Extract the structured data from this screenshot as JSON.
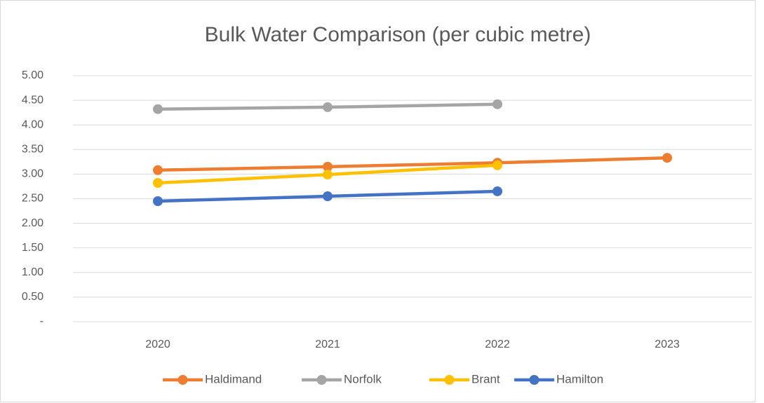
{
  "chart_data": {
    "type": "line",
    "title": "Bulk Water Comparison (per cubic metre)",
    "categories": [
      "2020",
      "2021",
      "2022",
      "2023"
    ],
    "series": [
      {
        "name": "Haldimand",
        "color": "#ED7D31",
        "values": [
          3.08,
          3.15,
          3.23,
          3.33
        ]
      },
      {
        "name": "Norfolk",
        "color": "#A5A5A5",
        "values": [
          4.32,
          4.36,
          4.42,
          null
        ]
      },
      {
        "name": "Brant",
        "color": "#FFC000",
        "values": [
          2.82,
          2.99,
          3.18,
          null
        ]
      },
      {
        "name": "Hamilton",
        "color": "#4472C4",
        "values": [
          2.45,
          2.55,
          2.65,
          null
        ]
      }
    ],
    "ylim": [
      0,
      5
    ],
    "yticks": [
      {
        "value": 0,
        "label": "-"
      },
      {
        "value": 0.5,
        "label": "0.50"
      },
      {
        "value": 1,
        "label": "1.00"
      },
      {
        "value": 1.5,
        "label": "1.50"
      },
      {
        "value": 2,
        "label": "2.00"
      },
      {
        "value": 2.5,
        "label": "2.50"
      },
      {
        "value": 3,
        "label": "3.00"
      },
      {
        "value": 3.5,
        "label": "3.50"
      },
      {
        "value": 4,
        "label": "4.00"
      },
      {
        "value": 4.5,
        "label": "4.50"
      },
      {
        "value": 5,
        "label": "5.00"
      }
    ],
    "grid": true,
    "legend": "bottom"
  }
}
